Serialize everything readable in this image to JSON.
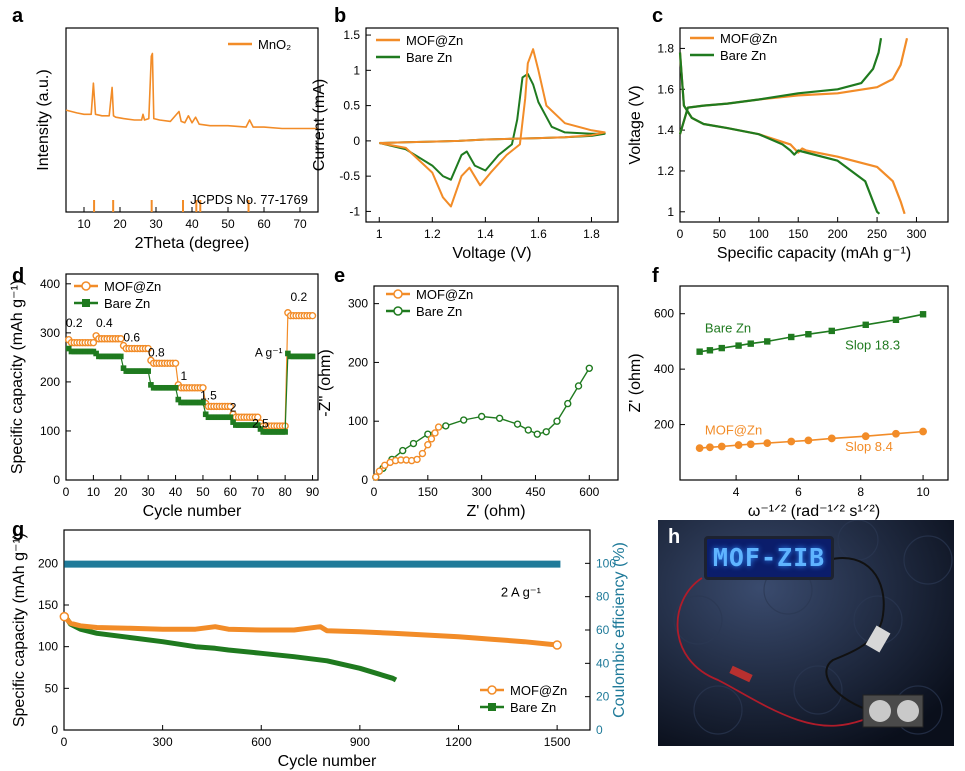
{
  "colors": {
    "orange": "#f28c28",
    "green": "#1f7a1f",
    "teal": "#1f7a99",
    "axis": "#000000"
  },
  "chart_data": [
    {
      "id": "a",
      "type": "line",
      "panel_label": "a",
      "xlabel": "2Theta (degree)",
      "ylabel": "Intensity (a.u.)",
      "xlim": [
        5,
        75
      ],
      "xticks": [
        10,
        20,
        30,
        40,
        50,
        60,
        70
      ],
      "legend": [
        "MnO₂"
      ],
      "annotation": "JCPDS No. 77-1769",
      "series": [
        {
          "name": "MnO₂",
          "x": [
            5,
            8,
            10,
            12,
            12.6,
            13.2,
            15,
            17,
            17.8,
            18.2,
            18.8,
            21,
            24,
            26,
            26.4,
            26.8,
            28,
            28.7,
            29.0,
            29.4,
            31,
            34,
            36.4,
            37,
            38,
            39,
            40,
            41,
            42,
            45,
            50,
            55,
            56,
            57,
            60,
            65,
            70,
            75
          ],
          "y": [
            72,
            70,
            69,
            69,
            91,
            69,
            68,
            68,
            88,
            68,
            67,
            66,
            65,
            65,
            69,
            65,
            66,
            110,
            112,
            66,
            65,
            64,
            71,
            64,
            63,
            68,
            63,
            67,
            62,
            61,
            61,
            60,
            65,
            60,
            60,
            59,
            59,
            59
          ]
        }
      ],
      "reference_peaks": [
        12.8,
        18.1,
        28.8,
        37.5,
        41.2,
        42.3,
        55.7
      ]
    },
    {
      "id": "b",
      "type": "line",
      "panel_label": "b",
      "xlabel": "Voltage (V)",
      "ylabel": "Current (mA)",
      "xlim": [
        0.95,
        1.9
      ],
      "ylim": [
        -1.15,
        1.6
      ],
      "xticks": [
        1.0,
        1.2,
        1.4,
        1.6,
        1.8
      ],
      "yticks": [
        -1.0,
        -0.5,
        0.0,
        0.5,
        1.0,
        1.5
      ],
      "legend": [
        "MOF@Zn",
        "Bare Zn"
      ],
      "series": [
        {
          "name": "MOF@Zn",
          "x": [
            1.0,
            1.1,
            1.2,
            1.24,
            1.27,
            1.31,
            1.34,
            1.38,
            1.42,
            1.48,
            1.53,
            1.55,
            1.56,
            1.58,
            1.6,
            1.63,
            1.7,
            1.8,
            1.85,
            1.8,
            1.7,
            1.6,
            1.5,
            1.4,
            1.3,
            1.2,
            1.1,
            1.0
          ],
          "y": [
            -0.03,
            -0.1,
            -0.45,
            -0.8,
            -0.93,
            -0.5,
            -0.38,
            -0.63,
            -0.45,
            -0.2,
            -0.05,
            0.6,
            1.1,
            1.3,
            1.0,
            0.5,
            0.25,
            0.15,
            0.12,
            0.08,
            0.05,
            0.04,
            0.03,
            0.02,
            0.0,
            -0.01,
            -0.02,
            -0.03
          ]
        },
        {
          "name": "Bare Zn",
          "x": [
            1.0,
            1.1,
            1.2,
            1.24,
            1.27,
            1.31,
            1.33,
            1.36,
            1.4,
            1.45,
            1.5,
            1.52,
            1.54,
            1.56,
            1.58,
            1.6,
            1.65,
            1.7,
            1.8,
            1.85,
            1.8,
            1.7,
            1.6,
            1.5,
            1.4,
            1.3,
            1.2,
            1.1,
            1.0
          ],
          "y": [
            -0.03,
            -0.12,
            -0.35,
            -0.5,
            -0.55,
            -0.2,
            -0.15,
            -0.35,
            -0.42,
            -0.2,
            -0.05,
            0.3,
            0.9,
            0.95,
            0.8,
            0.55,
            0.2,
            0.12,
            0.1,
            0.1,
            0.07,
            0.05,
            0.04,
            0.03,
            0.02,
            0.0,
            -0.01,
            -0.02,
            -0.03
          ]
        }
      ]
    },
    {
      "id": "c",
      "type": "line",
      "panel_label": "c",
      "xlabel": "Specific capacity  (mAh g⁻¹)",
      "ylabel": "Voltage (V)",
      "xlim": [
        0,
        340
      ],
      "ylim": [
        0.95,
        1.9
      ],
      "xticks": [
        0,
        50,
        100,
        150,
        200,
        250,
        300
      ],
      "yticks": [
        1.0,
        1.2,
        1.4,
        1.6,
        1.8
      ],
      "legend": [
        "MOF@Zn",
        "Bare Zn"
      ],
      "series": [
        {
          "name": "MOF@Zn",
          "segments": [
            {
              "x": [
                0,
                10,
                30,
                60,
                100,
                150,
                200,
                250,
                270,
                280,
                288
              ],
              "y": [
                1.38,
                1.51,
                1.52,
                1.53,
                1.55,
                1.57,
                1.58,
                1.61,
                1.65,
                1.72,
                1.85
              ]
            },
            {
              "x": [
                0,
                5,
                15,
                30,
                60,
                100,
                140,
                150,
                155,
                160,
                200,
                250,
                270,
                280,
                285
              ],
              "y": [
                1.78,
                1.52,
                1.46,
                1.43,
                1.41,
                1.38,
                1.33,
                1.29,
                1.31,
                1.3,
                1.27,
                1.22,
                1.15,
                1.05,
                0.99
              ]
            }
          ]
        },
        {
          "name": "Bare Zn",
          "segments": [
            {
              "x": [
                0,
                10,
                30,
                60,
                100,
                150,
                200,
                230,
                245,
                252,
                255
              ],
              "y": [
                1.38,
                1.51,
                1.52,
                1.53,
                1.55,
                1.58,
                1.6,
                1.63,
                1.7,
                1.78,
                1.85
              ]
            },
            {
              "x": [
                0,
                5,
                15,
                30,
                60,
                100,
                130,
                140,
                145,
                150,
                200,
                235,
                245,
                250,
                253
              ],
              "y": [
                1.78,
                1.52,
                1.46,
                1.43,
                1.41,
                1.38,
                1.33,
                1.3,
                1.28,
                1.3,
                1.25,
                1.15,
                1.05,
                1.0,
                0.99
              ]
            }
          ]
        }
      ]
    },
    {
      "id": "d",
      "type": "scatter",
      "panel_label": "d",
      "xlabel": "Cycle number",
      "ylabel": "Specific capacity (mAh g⁻¹)",
      "xlim": [
        0,
        92
      ],
      "ylim": [
        0,
        420
      ],
      "xticks": [
        0,
        10,
        20,
        30,
        40,
        50,
        60,
        70,
        80,
        90
      ],
      "yticks": [
        0,
        100,
        200,
        300,
        400
      ],
      "legend": [
        "MOF@Zn",
        "Bare Zn"
      ],
      "rate_labels": [
        {
          "text": "0.2",
          "x": 3,
          "y": 312
        },
        {
          "text": "0.4",
          "x": 14,
          "y": 312
        },
        {
          "text": "0.6",
          "x": 24,
          "y": 282
        },
        {
          "text": "0.8",
          "x": 33,
          "y": 252
        },
        {
          "text": "1",
          "x": 43,
          "y": 204
        },
        {
          "text": "1.5",
          "x": 52,
          "y": 164
        },
        {
          "text": "2",
          "x": 61,
          "y": 140
        },
        {
          "text": "2.5",
          "x": 71,
          "y": 107
        },
        {
          "text": "0.2",
          "x": 85,
          "y": 365
        },
        {
          "text": "A g⁻¹",
          "x": 74,
          "y": 252
        }
      ],
      "series": [
        {
          "name": "MOF@Zn",
          "steps": [
            [
              1,
              10,
              280
            ],
            [
              11,
              20,
              288
            ],
            [
              21,
              30,
              268
            ],
            [
              31,
              40,
              238
            ],
            [
              41,
              50,
              188
            ],
            [
              51,
              60,
              150
            ],
            [
              61,
              70,
              128
            ],
            [
              71,
              80,
              110
            ],
            [
              81,
              90,
              335
            ]
          ]
        },
        {
          "name": "Bare Zn",
          "steps": [
            [
              1,
              10,
              262
            ],
            [
              11,
              20,
              252
            ],
            [
              21,
              30,
              222
            ],
            [
              31,
              40,
              188
            ],
            [
              41,
              50,
              158
            ],
            [
              51,
              60,
              128
            ],
            [
              61,
              70,
              112
            ],
            [
              71,
              80,
              98
            ],
            [
              81,
              90,
              252
            ]
          ]
        }
      ]
    },
    {
      "id": "e",
      "type": "scatter",
      "panel_label": "e",
      "xlabel": "Z' (ohm)",
      "ylabel": "-Z'' (ohm)",
      "xlim": [
        0,
        680
      ],
      "ylim": [
        0,
        330
      ],
      "xticks": [
        0,
        150,
        300,
        450,
        600
      ],
      "yticks": [
        0,
        100,
        200,
        300
      ],
      "legend": [
        "MOF@Zn",
        "Bare Zn"
      ],
      "series": [
        {
          "name": "MOF@Zn",
          "x": [
            5,
            15,
            30,
            45,
            60,
            75,
            90,
            105,
            120,
            135,
            150,
            160,
            170,
            180
          ],
          "y": [
            5,
            15,
            25,
            30,
            33,
            34,
            34,
            33,
            35,
            45,
            60,
            70,
            80,
            90
          ]
        },
        {
          "name": "Bare Zn",
          "x": [
            5,
            25,
            50,
            80,
            110,
            150,
            200,
            250,
            300,
            350,
            400,
            430,
            455,
            480,
            510,
            540,
            570,
            600
          ],
          "y": [
            5,
            20,
            35,
            50,
            62,
            78,
            92,
            102,
            108,
            105,
            95,
            85,
            78,
            82,
            100,
            130,
            160,
            190
          ]
        }
      ]
    },
    {
      "id": "f",
      "type": "scatter",
      "panel_label": "f",
      "xlabel": "ω⁻¹ᐟ² (rad⁻¹ᐟ² s¹ᐟ²)",
      "ylabel": "Z' (ohm)",
      "xlim": [
        2.2,
        10.8
      ],
      "ylim": [
        0,
        700
      ],
      "xticks": [
        4,
        6,
        8,
        10
      ],
      "yticks": [
        200,
        400,
        600
      ],
      "series": [
        {
          "name": "Bare Zn",
          "label": "Bare Zn",
          "slope_label": "Slop 18.3",
          "x": [
            2.83,
            3.16,
            3.54,
            4.08,
            4.47,
            5.0,
            5.77,
            6.32,
            7.07,
            8.16,
            9.13,
            10.0
          ],
          "y": [
            463,
            468,
            476,
            485,
            492,
            500,
            516,
            526,
            538,
            560,
            578,
            598
          ]
        },
        {
          "name": "MOF@Zn",
          "label": "MOF@Zn",
          "slope_label": "Slop 8.4",
          "x": [
            2.83,
            3.16,
            3.54,
            4.08,
            4.47,
            5.0,
            5.77,
            6.32,
            7.07,
            8.16,
            9.13,
            10.0
          ],
          "y": [
            115,
            118,
            121,
            126,
            129,
            133,
            139,
            143,
            150,
            158,
            167,
            175
          ]
        }
      ]
    },
    {
      "id": "g",
      "type": "scatter",
      "panel_label": "g",
      "xlabel": "Cycle number",
      "ylabel": "Specific capacity (mAh g⁻¹)",
      "y2label": "Coulombic efficiency (%)",
      "xlim": [
        0,
        1600
      ],
      "ylim": [
        0,
        240
      ],
      "y2lim": [
        0,
        120
      ],
      "xticks": [
        0,
        300,
        600,
        900,
        1200,
        1500
      ],
      "yticks": [
        0,
        50,
        100,
        150,
        200
      ],
      "y2ticks": [
        0,
        20,
        40,
        60,
        80,
        100
      ],
      "legend": [
        "MOF@Zn",
        "Bare Zn"
      ],
      "annotation": "2 A g⁻¹",
      "series": [
        {
          "name": "MOF@Zn",
          "x": [
            1,
            20,
            50,
            100,
            200,
            300,
            400,
            460,
            500,
            600,
            700,
            780,
            800,
            900,
            1000,
            1100,
            1200,
            1300,
            1400,
            1500
          ],
          "y": [
            136,
            128,
            125,
            123,
            122,
            121,
            121,
            124,
            121,
            120,
            120,
            124,
            119,
            118,
            116,
            114,
            112,
            109,
            106,
            102
          ]
        },
        {
          "name": "Bare Zn",
          "x": [
            1,
            20,
            50,
            100,
            200,
            300,
            400,
            460,
            500,
            600,
            700,
            800,
            900,
            1000,
            1010
          ],
          "y": [
            138,
            127,
            121,
            116,
            111,
            106,
            100,
            98,
            96,
            92,
            88,
            83,
            74,
            62,
            60
          ]
        },
        {
          "name": "Coulombic efficiency",
          "x": [
            1,
            1510
          ],
          "y": [
            99.5,
            99.5
          ]
        }
      ]
    }
  ],
  "photo": {
    "panel_label": "h",
    "display_text": "MOF-ZIB"
  }
}
